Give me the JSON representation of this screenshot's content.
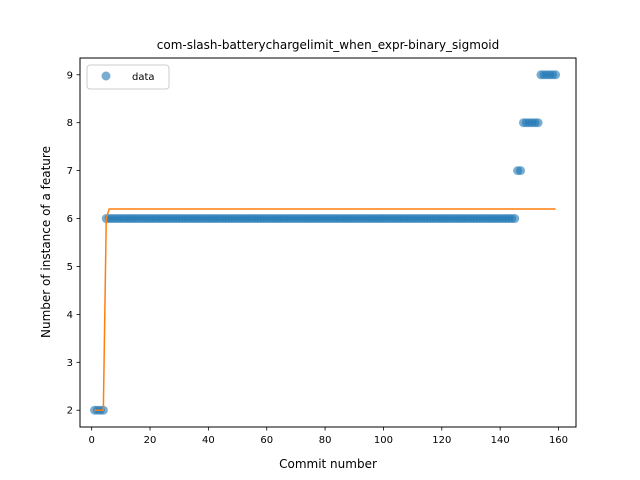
{
  "chart_data": {
    "type": "scatter",
    "title": "com-slash-batterychargelimit_when_expr-binary_sigmoid",
    "xlabel": "Commit number",
    "ylabel": "Number of instance of a feature",
    "xlim": [
      -4,
      166
    ],
    "ylim": [
      1.65,
      9.35
    ],
    "xticks": [
      0,
      20,
      40,
      60,
      80,
      100,
      120,
      140,
      160
    ],
    "yticks": [
      2,
      3,
      4,
      5,
      6,
      7,
      8,
      9
    ],
    "grid": false,
    "legend": {
      "position": "top-left",
      "entries": [
        "data"
      ]
    },
    "colors": {
      "data": "#1f77b4",
      "fit": "#ff7f0e"
    },
    "series": [
      {
        "name": "data",
        "kind": "scatter",
        "segments": [
          {
            "x_from": 1,
            "x_to": 4,
            "y": 2
          },
          {
            "x_from": 5,
            "x_to": 145,
            "y": 6
          },
          {
            "x_from": 146,
            "x_to": 147,
            "y": 7
          },
          {
            "x_from": 148,
            "x_to": 153,
            "y": 8
          },
          {
            "x_from": 154,
            "x_to": 159,
            "y": 9
          }
        ]
      },
      {
        "kind": "line",
        "x": [
          1,
          4,
          5,
          6,
          159
        ],
        "y": [
          2.0,
          2.0,
          6.0,
          6.2,
          6.2
        ]
      }
    ]
  }
}
